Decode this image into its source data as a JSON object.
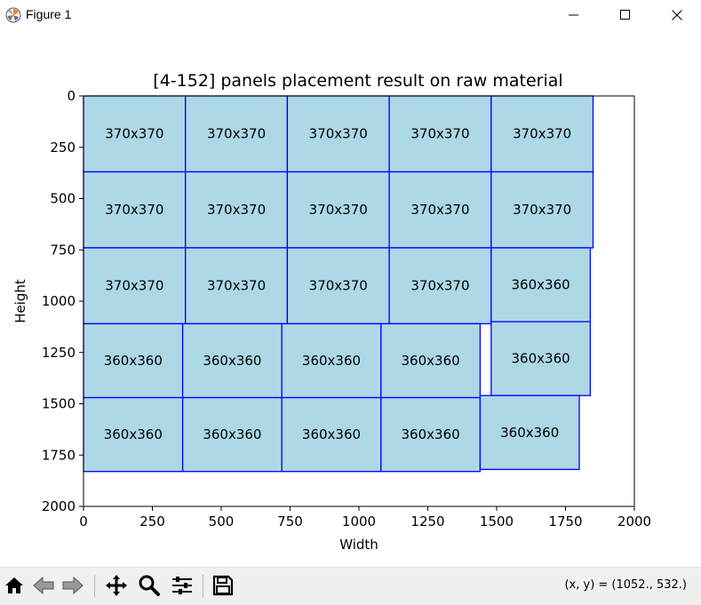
{
  "window": {
    "title": "Figure 1",
    "controls": [
      "minimize",
      "maximize",
      "close"
    ]
  },
  "chart_data": {
    "type": "bar",
    "title": "[4-152] panels placement result on raw material",
    "xlabel": "Width",
    "ylabel": "Height",
    "xlim": [
      0,
      2000
    ],
    "ylim": [
      2000,
      0
    ],
    "xticks": [
      0,
      250,
      500,
      750,
      1000,
      1250,
      1500,
      1750,
      2000
    ],
    "yticks": [
      0,
      250,
      500,
      750,
      1000,
      1250,
      1500,
      1750,
      2000
    ],
    "rect_fill": "#add8e6",
    "rect_edge": "#0000ff",
    "panels": [
      {
        "x": 0,
        "y": 0,
        "w": 370,
        "h": 370,
        "label": "370x370"
      },
      {
        "x": 370,
        "y": 0,
        "w": 370,
        "h": 370,
        "label": "370x370"
      },
      {
        "x": 740,
        "y": 0,
        "w": 370,
        "h": 370,
        "label": "370x370"
      },
      {
        "x": 1110,
        "y": 0,
        "w": 370,
        "h": 370,
        "label": "370x370"
      },
      {
        "x": 1480,
        "y": 0,
        "w": 370,
        "h": 370,
        "label": "370x370"
      },
      {
        "x": 0,
        "y": 370,
        "w": 370,
        "h": 370,
        "label": "370x370"
      },
      {
        "x": 370,
        "y": 370,
        "w": 370,
        "h": 370,
        "label": "370x370"
      },
      {
        "x": 740,
        "y": 370,
        "w": 370,
        "h": 370,
        "label": "370x370"
      },
      {
        "x": 1110,
        "y": 370,
        "w": 370,
        "h": 370,
        "label": "370x370"
      },
      {
        "x": 1480,
        "y": 370,
        "w": 370,
        "h": 370,
        "label": "370x370"
      },
      {
        "x": 0,
        "y": 740,
        "w": 370,
        "h": 370,
        "label": "370x370"
      },
      {
        "x": 370,
        "y": 740,
        "w": 370,
        "h": 370,
        "label": "370x370"
      },
      {
        "x": 740,
        "y": 740,
        "w": 370,
        "h": 370,
        "label": "370x370"
      },
      {
        "x": 1110,
        "y": 740,
        "w": 370,
        "h": 370,
        "label": "370x370"
      },
      {
        "x": 1480,
        "y": 740,
        "w": 360,
        "h": 360,
        "label": "360x360"
      },
      {
        "x": 0,
        "y": 1110,
        "w": 360,
        "h": 360,
        "label": "360x360"
      },
      {
        "x": 360,
        "y": 1110,
        "w": 360,
        "h": 360,
        "label": "360x360"
      },
      {
        "x": 720,
        "y": 1110,
        "w": 360,
        "h": 360,
        "label": "360x360"
      },
      {
        "x": 1080,
        "y": 1110,
        "w": 360,
        "h": 360,
        "label": "360x360"
      },
      {
        "x": 1480,
        "y": 1100,
        "w": 360,
        "h": 360,
        "label": "360x360"
      },
      {
        "x": 0,
        "y": 1470,
        "w": 360,
        "h": 360,
        "label": "360x360"
      },
      {
        "x": 360,
        "y": 1470,
        "w": 360,
        "h": 360,
        "label": "360x360"
      },
      {
        "x": 720,
        "y": 1470,
        "w": 360,
        "h": 360,
        "label": "360x360"
      },
      {
        "x": 1080,
        "y": 1470,
        "w": 360,
        "h": 360,
        "label": "360x360"
      },
      {
        "x": 1440,
        "y": 1460,
        "w": 360,
        "h": 360,
        "label": "360x360"
      }
    ]
  },
  "toolbar": {
    "buttons": [
      "home-icon",
      "back-icon",
      "forward-icon",
      "pan-icon",
      "zoom-icon",
      "configure-subplots-icon",
      "save-icon"
    ],
    "coords_text": "(x, y) = (1052., 532.)"
  }
}
